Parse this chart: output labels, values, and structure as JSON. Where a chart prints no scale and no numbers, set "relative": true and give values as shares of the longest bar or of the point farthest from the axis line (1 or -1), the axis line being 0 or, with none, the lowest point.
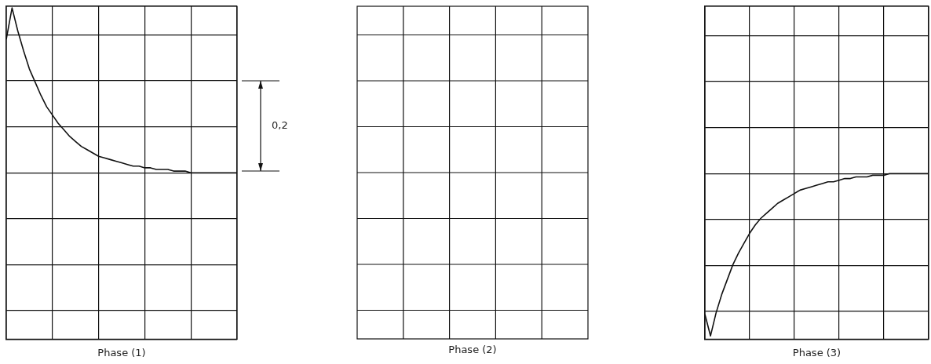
{
  "chart_data": [
    {
      "type": "line",
      "xlabel": "Phase (1)",
      "relative": true,
      "grid": true,
      "tick_labels": false,
      "marker": "none",
      "annotations": [
        "0,2"
      ],
      "categories": [
        null,
        null,
        null,
        null,
        null,
        null,
        null,
        null,
        null,
        null,
        null,
        null,
        null,
        null,
        null,
        null,
        null,
        null,
        null,
        null,
        null,
        null,
        null,
        null,
        null,
        null,
        null,
        null,
        null,
        null,
        null,
        null,
        null,
        null,
        null,
        null,
        null,
        null,
        null,
        null,
        null
      ],
      "series": [
        {
          "color": "#111111",
          "values": [
            0.81,
            1.0,
            0.86,
            0.74,
            0.63,
            0.55,
            0.47,
            0.4,
            0.35,
            0.3,
            0.26,
            0.22,
            0.19,
            0.16,
            0.14,
            0.12,
            0.1,
            0.09,
            0.08,
            0.07,
            0.06,
            0.05,
            0.04,
            0.04,
            0.03,
            0.03,
            0.02,
            0.02,
            0.02,
            0.01,
            0.01,
            0.01,
            0,
            0,
            0,
            0,
            0,
            0,
            0,
            0,
            0
          ]
        }
      ]
    },
    {
      "type": "other",
      "xlabel": "Phase (2)"
    },
    {
      "type": "line",
      "xlabel": "Phase (3)",
      "relative": true,
      "grid": true,
      "tick_labels": false,
      "marker": "none",
      "categories": [
        null,
        null,
        null,
        null,
        null,
        null,
        null,
        null,
        null,
        null,
        null,
        null,
        null,
        null,
        null,
        null,
        null,
        null,
        null,
        null,
        null,
        null,
        null,
        null,
        null,
        null,
        null,
        null,
        null,
        null,
        null,
        null,
        null,
        null,
        null,
        null,
        null,
        null,
        null,
        null,
        null
      ],
      "series": [
        {
          "color": "#111111",
          "values": [
            0.15,
            0.02,
            0.16,
            0.27,
            0.36,
            0.45,
            0.52,
            0.58,
            0.64,
            0.69,
            0.73,
            0.76,
            0.79,
            0.82,
            0.84,
            0.86,
            0.88,
            0.9,
            0.91,
            0.92,
            0.93,
            0.94,
            0.95,
            0.95,
            0.96,
            0.97,
            0.97,
            0.98,
            0.98,
            0.98,
            0.99,
            0.99,
            0.99,
            1,
            1,
            1,
            1,
            1,
            1,
            1,
            1
          ]
        }
      ]
    }
  ]
}
